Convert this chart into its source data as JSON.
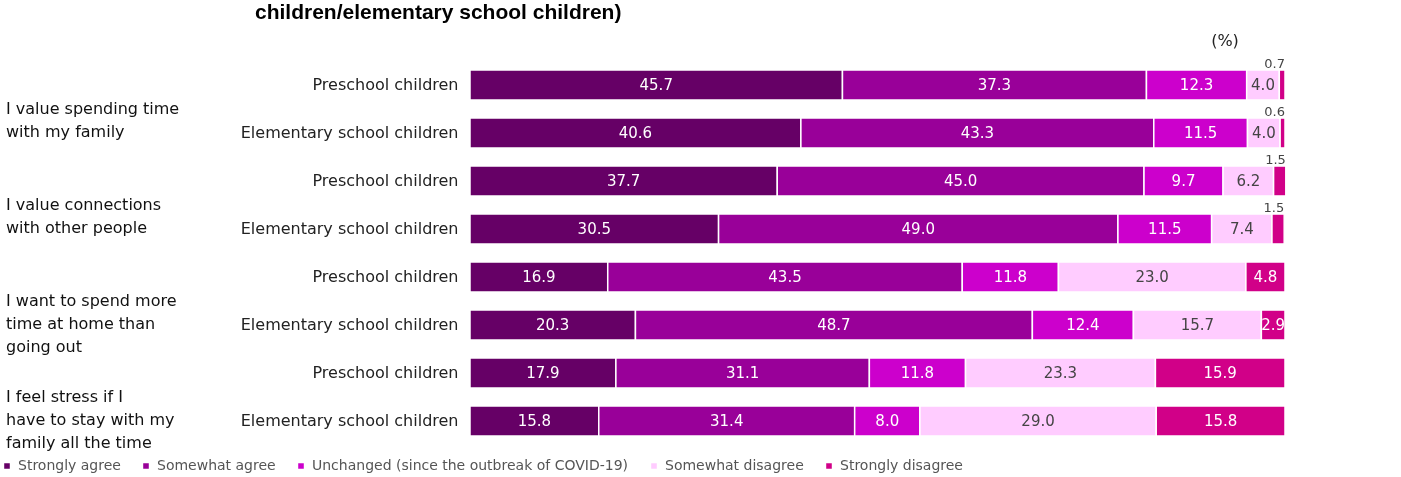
{
  "chart_data": {
    "type": "bar",
    "orientation": "horizontal",
    "stacked": true,
    "legend": "bottom",
    "title": "children/elementary school children)",
    "annotations": [
      "(%)",
      "I value spending time with my family",
      "I value connections with other people",
      "I want to spend more time at home than going out",
      "I feel stress if I have to stay with my family all the time"
    ],
    "categories": [
      "Preschool children",
      "Elementary school children",
      "Preschool children",
      "Elementary school children",
      "Preschool children",
      "Elementary school children",
      "Preschool children",
      "Elementary school children"
    ],
    "xlim": [
      0,
      100
    ],
    "series": [
      {
        "name": "Strongly agree",
        "color": "#660066",
        "values": [
          45.7,
          40.6,
          37.7,
          30.5,
          16.9,
          20.3,
          17.9,
          15.8
        ],
        "value_labels": [
          "45.7",
          "40.6",
          "37.7",
          "30.5",
          "16.9",
          "20.3",
          "17.9",
          "15.8"
        ]
      },
      {
        "name": "Somewhat agree",
        "color": "#990099",
        "values": [
          37.3,
          43.3,
          45.0,
          49.0,
          43.5,
          48.7,
          31.1,
          31.4
        ],
        "value_labels": [
          "37.3",
          "43.3",
          "45.0",
          "49.0",
          "43.5",
          "48.7",
          "31.1",
          "31.4"
        ]
      },
      {
        "name": "Unchanged (since the outbreak of COVID-19)",
        "color": "#cc00cc",
        "values": [
          12.3,
          11.5,
          9.7,
          11.5,
          11.8,
          12.4,
          11.8,
          8.0
        ],
        "value_labels": [
          "12.3",
          "11.5",
          "9.7",
          "11.5",
          "11.8",
          "12.4",
          "11.8",
          "8.0"
        ]
      },
      {
        "name": "Somewhat disagree",
        "color": "#ffccff",
        "values": [
          4.0,
          4.0,
          6.2,
          7.4,
          23.0,
          15.7,
          23.3,
          29.0
        ],
        "value_labels": [
          "4.0",
          "4.0",
          "6.2",
          "7.4",
          "23.0",
          "15.7",
          "23.3",
          "29.0"
        ]
      },
      {
        "name": "Strongly disagree",
        "color": "#d10088",
        "values": [
          0.7,
          0.6,
          1.5,
          1.5,
          4.8,
          2.9,
          15.9,
          15.8
        ],
        "value_labels": [
          "0.7",
          "0.6",
          "1.5",
          "1.5",
          "4.8",
          "2.9",
          "15.9",
          "15.8"
        ]
      }
    ]
  }
}
